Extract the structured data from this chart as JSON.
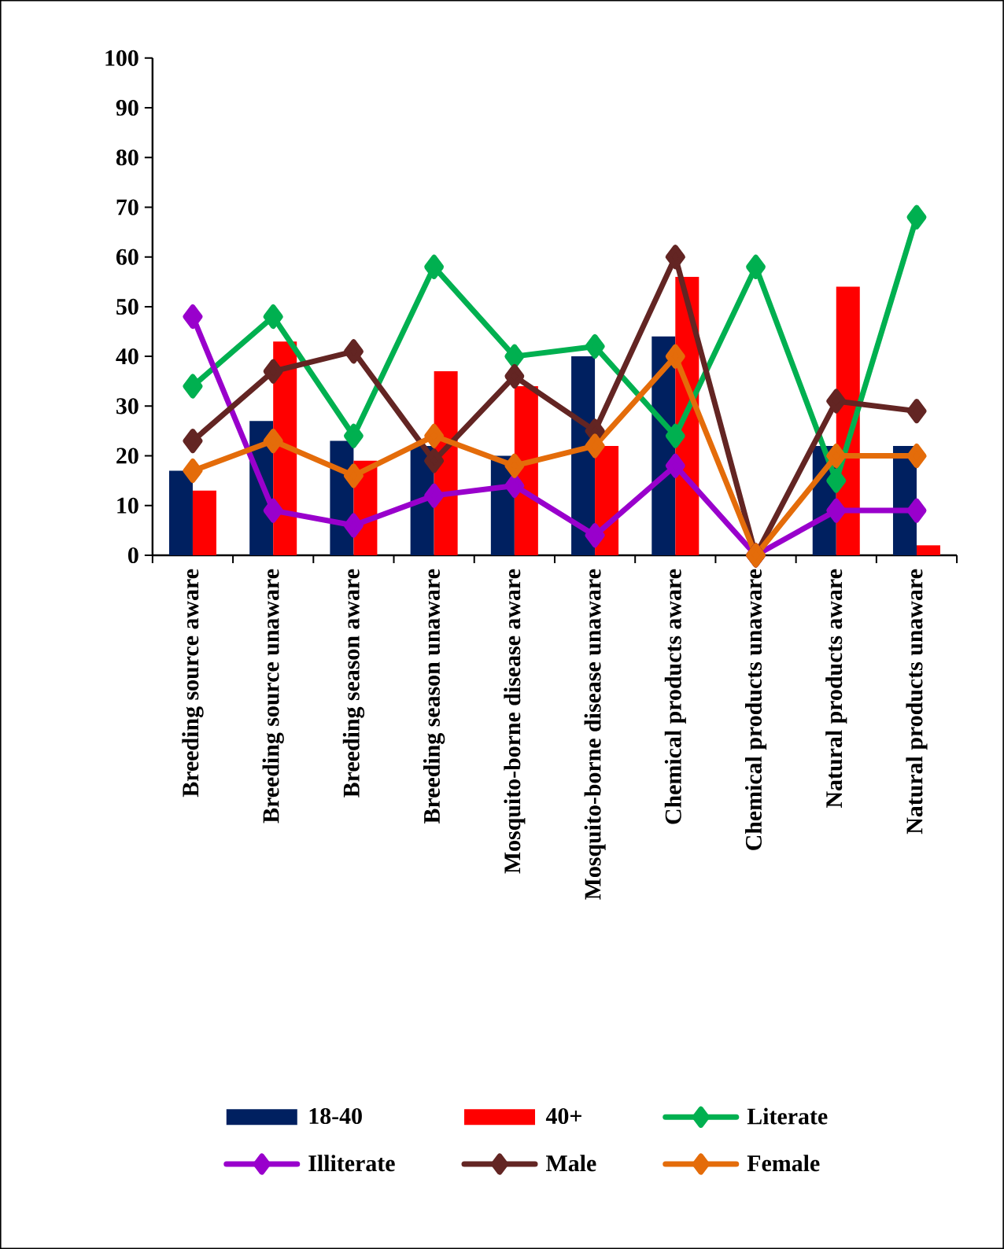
{
  "chart_data": {
    "type": "bar",
    "categories": [
      "Breeding source aware",
      "Breeding source unaware",
      "Breeding season aware",
      "Breeding season unaware",
      "Mosquito-borne disease aware",
      "Mosquito-borne disease unaware",
      "Chemical products aware",
      "Chemical products unaware",
      "Natural products aware",
      "Natural products unaware"
    ],
    "series": [
      {
        "name": "18-40",
        "color": "#002060",
        "values": [
          17,
          27,
          23,
          22,
          20,
          40,
          44,
          0,
          22,
          22
        ]
      },
      {
        "name": "40+",
        "color": "#ff0000",
        "values": [
          13,
          43,
          19,
          37,
          34,
          22,
          56,
          0,
          54,
          2
        ]
      },
      {
        "name": "Literate",
        "type": "line",
        "color": "#00b050",
        "values": [
          34,
          48,
          24,
          58,
          40,
          42,
          24,
          58,
          15,
          68
        ]
      },
      {
        "name": "Illiterate",
        "type": "line",
        "color": "#9900cc",
        "values": [
          48,
          9,
          6,
          12,
          14,
          4,
          18,
          0,
          9,
          9
        ]
      },
      {
        "name": "Male",
        "type": "line",
        "color": "#632523",
        "values": [
          23,
          37,
          41,
          19,
          36,
          25,
          60,
          0,
          31,
          29
        ]
      },
      {
        "name": "Female",
        "type": "line",
        "color": "#e46c0a",
        "values": [
          17,
          23,
          16,
          24,
          18,
          22,
          40,
          0,
          20,
          20
        ]
      }
    ],
    "marker": "diamond",
    "ylim": [
      0,
      100
    ],
    "yticks": [
      0,
      10,
      20,
      30,
      40,
      50,
      60,
      70,
      80,
      90,
      100
    ],
    "grid": false,
    "legend": "bottom"
  }
}
